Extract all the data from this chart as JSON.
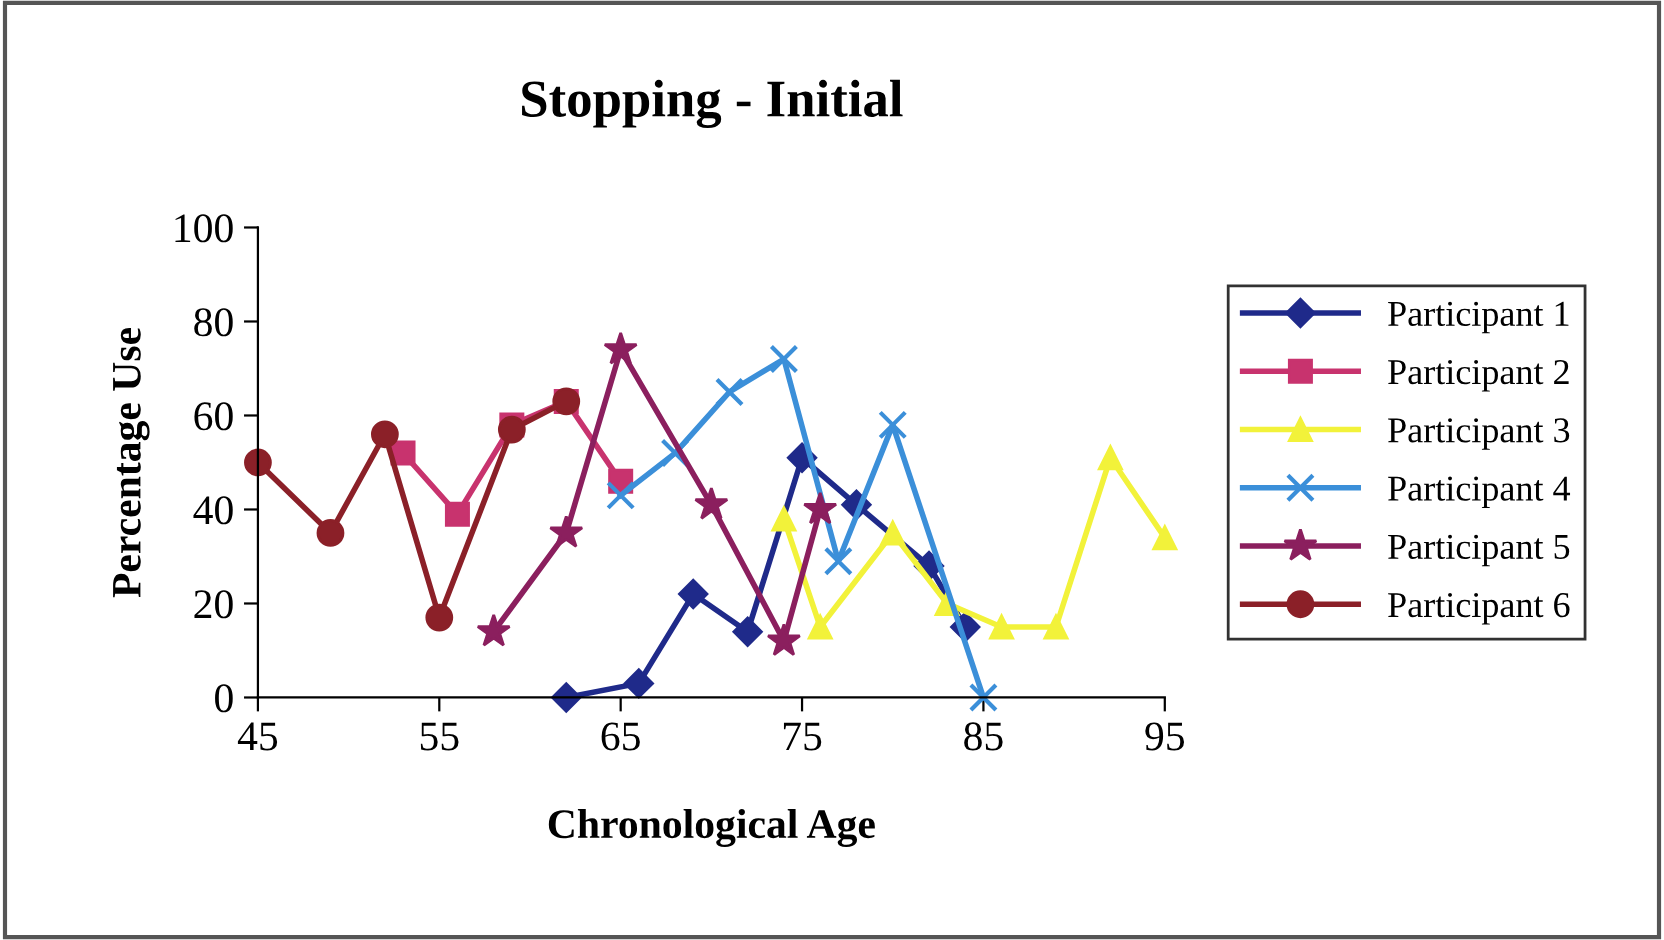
{
  "chart_data": {
    "type": "line",
    "title": "Stopping - Initial",
    "xlabel": "Chronological Age",
    "ylabel": "Percentage Use",
    "xlim": [
      45,
      95
    ],
    "xticks": [
      45,
      55,
      65,
      75,
      85,
      95
    ],
    "ylim": [
      0,
      100
    ],
    "yticks": [
      0,
      20,
      40,
      60,
      80,
      100
    ],
    "grid": false,
    "legend": "right",
    "series": [
      {
        "name": "Participant 1",
        "color": "#1f2a8a",
        "marker": "diamond",
        "x": [
          62,
          66,
          69,
          72,
          75,
          78,
          82,
          84
        ],
        "values": [
          0,
          3,
          22,
          14,
          51,
          41,
          28,
          15
        ]
      },
      {
        "name": "Participant 2",
        "color": "#c8336e",
        "marker": "square",
        "x": [
          53,
          56,
          59,
          62,
          65
        ],
        "values": [
          52,
          39,
          58,
          63,
          46
        ]
      },
      {
        "name": "Participant 3",
        "color": "#f2f23a",
        "marker": "triangle",
        "x": [
          74,
          76,
          80,
          83,
          86,
          89,
          92,
          95
        ],
        "values": [
          38,
          15,
          35,
          20,
          15,
          15,
          51,
          34
        ]
      },
      {
        "name": "Participant 4",
        "color": "#3b8fd9",
        "marker": "cross",
        "x": [
          65,
          68,
          71,
          74,
          77,
          80,
          85
        ],
        "values": [
          43,
          52,
          65,
          72,
          29,
          58,
          0
        ]
      },
      {
        "name": "Participant 5",
        "color": "#8b1f5e",
        "marker": "star",
        "x": [
          58,
          62,
          65,
          70,
          74,
          76
        ],
        "values": [
          14,
          35,
          74,
          41,
          12,
          40
        ]
      },
      {
        "name": "Participant 6",
        "color": "#8b2028",
        "marker": "circle",
        "x": [
          45,
          49,
          52,
          55,
          59,
          62
        ],
        "values": [
          50,
          35,
          56,
          17,
          57,
          63
        ]
      }
    ]
  }
}
